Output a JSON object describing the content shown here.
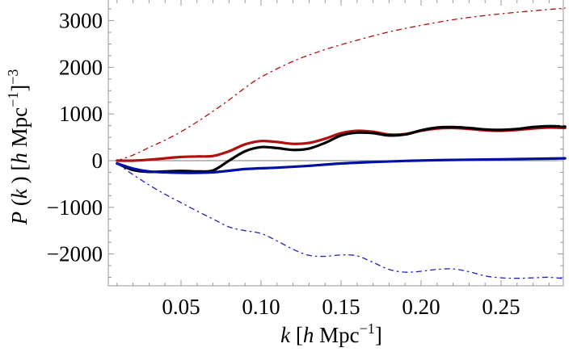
{
  "chart_data": {
    "type": "line",
    "title": "",
    "xlabel": "k [h Mpc^-1]",
    "ylabel": "P(k) [h Mpc^-1]^-3",
    "xlim": [
      0.0045,
      0.289
    ],
    "ylim": [
      -2680,
      3440
    ],
    "grid": false,
    "legend": null,
    "x_ticks": [
      0.05,
      0.1,
      0.15,
      0.2,
      0.25
    ],
    "x_tick_labels": [
      "0.05",
      "0.10",
      "0.15",
      "0.20",
      "0.25"
    ],
    "y_ticks": [
      3000,
      2000,
      1000,
      0,
      -1000,
      -2000
    ],
    "y_tick_labels": [
      "3000",
      "2000",
      "1000",
      "0",
      "−1000",
      "−2000"
    ],
    "zero_line": true,
    "series": [
      {
        "name": "red-dashed",
        "color": "#b01010",
        "style": "dashdot",
        "x": [
          0.01,
          0.02,
          0.03,
          0.04,
          0.05,
          0.06,
          0.07,
          0.08,
          0.09,
          0.1,
          0.12,
          0.14,
          0.16,
          0.18,
          0.2,
          0.22,
          0.24,
          0.26,
          0.28,
          0.29
        ],
        "values": [
          0,
          120,
          280,
          440,
          620,
          830,
          1060,
          1300,
          1560,
          1790,
          2130,
          2380,
          2580,
          2760,
          2900,
          3020,
          3110,
          3180,
          3240,
          3270
        ]
      },
      {
        "name": "red-solid",
        "color": "#b01010",
        "style": "solid",
        "x": [
          0.01,
          0.02,
          0.03,
          0.04,
          0.05,
          0.06,
          0.07,
          0.08,
          0.09,
          0.1,
          0.11,
          0.12,
          0.13,
          0.14,
          0.15,
          0.16,
          0.17,
          0.18,
          0.19,
          0.2,
          0.21,
          0.22,
          0.23,
          0.24,
          0.25,
          0.26,
          0.27,
          0.28,
          0.29
        ],
        "values": [
          0,
          0,
          20,
          50,
          80,
          90,
          100,
          200,
          350,
          420,
          400,
          360,
          380,
          470,
          590,
          640,
          620,
          560,
          570,
          640,
          690,
          700,
          680,
          650,
          640,
          660,
          690,
          710,
          700
        ]
      },
      {
        "name": "black-solid",
        "color": "#000000",
        "style": "solid",
        "x": [
          0.01,
          0.02,
          0.03,
          0.04,
          0.05,
          0.06,
          0.07,
          0.08,
          0.09,
          0.1,
          0.11,
          0.12,
          0.13,
          0.14,
          0.15,
          0.16,
          0.17,
          0.18,
          0.19,
          0.2,
          0.21,
          0.22,
          0.23,
          0.24,
          0.25,
          0.26,
          0.27,
          0.28,
          0.29
        ],
        "values": [
          -60,
          -200,
          -240,
          -230,
          -220,
          -230,
          -210,
          0,
          200,
          290,
          270,
          230,
          260,
          380,
          540,
          600,
          590,
          540,
          560,
          650,
          710,
          720,
          700,
          670,
          660,
          680,
          720,
          740,
          730
        ]
      },
      {
        "name": "blue-solid",
        "color": "#0010a0",
        "style": "solid",
        "x": [
          0.01,
          0.02,
          0.03,
          0.05,
          0.07,
          0.09,
          0.11,
          0.13,
          0.15,
          0.17,
          0.19,
          0.21,
          0.23,
          0.25,
          0.27,
          0.29
        ],
        "values": [
          -60,
          -170,
          -230,
          -260,
          -250,
          -180,
          -150,
          -110,
          -60,
          -30,
          -5,
          10,
          20,
          30,
          40,
          50
        ]
      },
      {
        "name": "blue-dashed",
        "color": "#2020c0",
        "style": "dashdot",
        "x": [
          0.01,
          0.02,
          0.03,
          0.04,
          0.05,
          0.06,
          0.07,
          0.08,
          0.09,
          0.1,
          0.11,
          0.12,
          0.13,
          0.14,
          0.15,
          0.16,
          0.17,
          0.18,
          0.19,
          0.2,
          0.21,
          0.22,
          0.23,
          0.24,
          0.25,
          0.26,
          0.27,
          0.28,
          0.29
        ],
        "values": [
          -60,
          -300,
          -520,
          -720,
          -900,
          -1080,
          -1250,
          -1420,
          -1500,
          -1560,
          -1720,
          -1900,
          -2030,
          -2050,
          -2020,
          -2040,
          -2180,
          -2330,
          -2390,
          -2370,
          -2330,
          -2320,
          -2380,
          -2470,
          -2510,
          -2520,
          -2510,
          -2500,
          -2530
        ]
      }
    ]
  },
  "axes": {
    "xlabel": {
      "var": "k",
      "open": " [",
      "h": "h",
      "unit": " Mpc",
      "exp": "−1",
      "close": "]"
    },
    "ylabel": {
      "P": "P",
      "k_paren_open": " (",
      "k": "k",
      "k_paren_close": " ) [",
      "h": "h",
      "unit": "  Mpc",
      "exp1": "−1",
      "close": "]",
      "exp2": "−3"
    }
  }
}
